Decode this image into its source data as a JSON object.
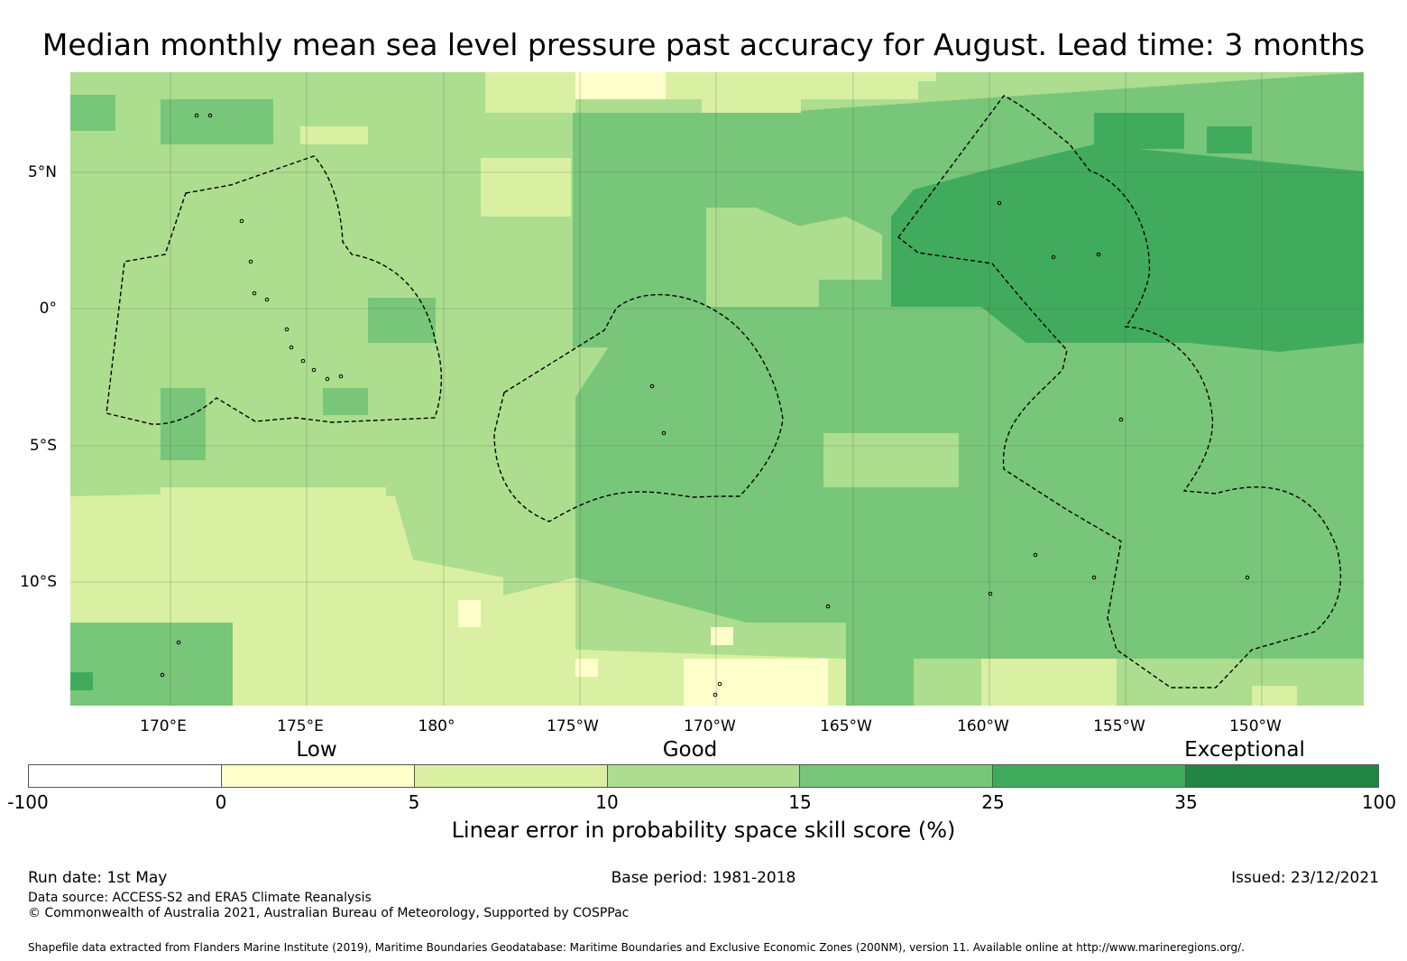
{
  "title": "Median monthly mean sea level pressure past accuracy for August. Lead time: 3 months",
  "map": {
    "lat_labels": [
      "5°N",
      "0°",
      "5°S",
      "10°S"
    ],
    "lon_labels": [
      "170°E",
      "175°E",
      "180°",
      "175°W",
      "170°W",
      "165°W",
      "160°W",
      "155°W",
      "150°W"
    ],
    "colors": {
      "-100": "#ffffff",
      "0": "#ffffcc",
      "5": "#d9f0a3",
      "10": "#addd8e",
      "15": "#78c679",
      "25": "#41ab5d",
      "35": "#238443"
    }
  },
  "legend": {
    "band_labels": [
      "Low",
      "Good",
      "Exceptional"
    ],
    "bins": [
      {
        "from": -100,
        "to": 0,
        "color": "#ffffff"
      },
      {
        "from": 0,
        "to": 5,
        "color": "#ffffcc"
      },
      {
        "from": 5,
        "to": 10,
        "color": "#d9f0a3"
      },
      {
        "from": 10,
        "to": 15,
        "color": "#addd8e"
      },
      {
        "from": 15,
        "to": 25,
        "color": "#78c679"
      },
      {
        "from": 25,
        "to": 35,
        "color": "#41ab5d"
      },
      {
        "from": 35,
        "to": 100,
        "color": "#238443"
      }
    ],
    "ticks": [
      "-100",
      "0",
      "5",
      "10",
      "15",
      "25",
      "35",
      "100"
    ],
    "label": "Linear error in probability space skill score (%)"
  },
  "footer": {
    "run_date": "Run date: 1st May",
    "base_period": "Base period: 1981-2018",
    "issued": "Issued: 23/12/2021",
    "data_source": "Data source: ACCESS-S2 and ERA5 Climate Reanalysis",
    "copyright": "© Commonwealth of Australia 2021, Australian Bureau of Meteorology, Supported by COSPPac",
    "shapefile": "Shapefile data extracted from Flanders Marine Institute (2019), Maritime Boundaries Geodatabase: Maritime Boundaries and Exclusive Economic Zones (200NM), version 11. Available online at http://www.marineregions.org/."
  }
}
